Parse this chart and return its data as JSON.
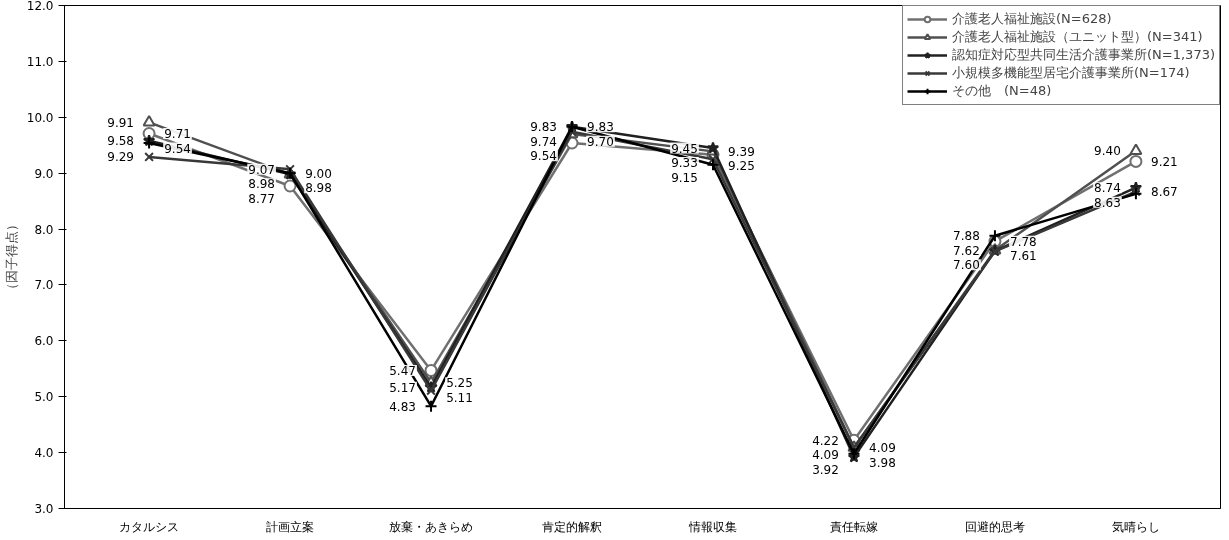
{
  "chart_data": {
    "type": "line",
    "ylabel": "（因子得点）",
    "categories": [
      "カタルシス",
      "計画立案",
      "放棄・あきらめ",
      "肯定的解釈",
      "情報収集",
      "責任転嫁",
      "回避的思考",
      "気晴らし"
    ],
    "ylim": [
      3,
      12
    ],
    "yticks": [
      {
        "value": 3,
        "label": "3.0"
      },
      {
        "value": 4,
        "label": "4.0"
      },
      {
        "value": 5,
        "label": "5.0"
      },
      {
        "value": 6,
        "label": "6.0"
      },
      {
        "value": 7,
        "label": "7.0"
      },
      {
        "value": 8,
        "label": "8.0"
      },
      {
        "value": 9,
        "label": "9.0"
      },
      {
        "value": 10,
        "label": "10.0"
      },
      {
        "value": 11,
        "label": "11.0"
      },
      {
        "value": 12,
        "label": "12.0"
      }
    ],
    "grid": false,
    "legend": "top right",
    "series": [
      {
        "name": "介護老人福祉施設(N=628)",
        "color": "#707070",
        "marker": "circle",
        "values": [
          9.71,
          8.77,
          5.47,
          9.54,
          9.33,
          4.22,
          7.78,
          9.21
        ],
        "value_labels": [
          "9.71",
          "8.77",
          "5.47",
          "9.54",
          "9.33",
          "4.22",
          "7.78",
          "9.21"
        ]
      },
      {
        "name": "介護老人福祉施設（ユニット型）(N=341)",
        "color": "#505050",
        "marker": "triangle",
        "values": [
          9.91,
          8.98,
          5.25,
          9.7,
          9.39,
          4.09,
          7.62,
          9.4
        ],
        "value_labels": [
          "9.91",
          "8.98",
          "5.25",
          "9.70",
          "9.39",
          "4.09",
          "7.62",
          "9.40"
        ]
      },
      {
        "name": "認知症対応型共同生活介護事業所(N=1,373)",
        "color": "#202020",
        "marker": "star",
        "values": [
          9.58,
          8.98,
          5.17,
          9.83,
          9.45,
          3.92,
          7.61,
          8.74
        ],
        "value_labels": [
          "9.58",
          "8.98",
          "5.17",
          "9.83",
          "9.45",
          "3.92",
          "7.61",
          "8.74"
        ]
      },
      {
        "name": "小規模多機能型居宅介護事業所(N=174)",
        "color": "#383838",
        "marker": "cross",
        "values": [
          9.29,
          9.07,
          5.11,
          9.74,
          9.25,
          4.09,
          7.6,
          8.67
        ],
        "value_labels": [
          "9.29",
          "9.07",
          "5.11",
          "9.74",
          "9.25",
          "4.09",
          "7.60",
          "8.67"
        ]
      },
      {
        "name": "その他　(N=48)",
        "color": "#000000",
        "marker": "plus",
        "values": [
          9.54,
          9.0,
          4.83,
          9.83,
          9.15,
          3.98,
          7.88,
          8.63
        ],
        "value_labels": [
          "9.54",
          "9.00",
          "4.83",
          "9.83",
          "9.15",
          "3.98",
          "7.88",
          "8.63"
        ]
      }
    ]
  }
}
